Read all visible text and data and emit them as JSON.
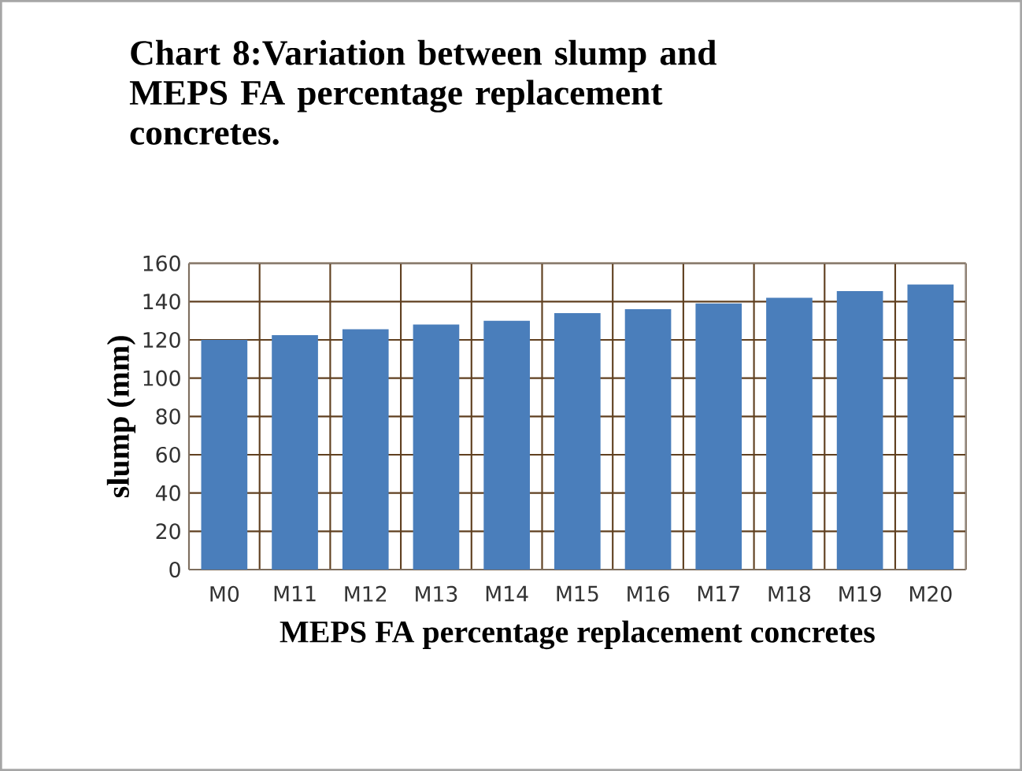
{
  "chart_data": {
    "type": "bar",
    "title": "Chart 8:Variation between slump and MEPS FA percentage replacement concretes.",
    "xlabel": "MEPS FA percentage replacement concretes",
    "ylabel": "slump (mm)",
    "categories": [
      "M0",
      "M11",
      "M12",
      "M13",
      "M14",
      "M15",
      "M16",
      "M17",
      "M18",
      "M19",
      "M20"
    ],
    "values": [
      120,
      122.5,
      125.5,
      128,
      130,
      134,
      136,
      139,
      142,
      145.5,
      149
    ],
    "color": "#4a7ebb",
    "ylim": [
      0,
      160
    ],
    "yticks": [
      0,
      20,
      40,
      60,
      80,
      100,
      120,
      140,
      160
    ],
    "grid": true
  }
}
